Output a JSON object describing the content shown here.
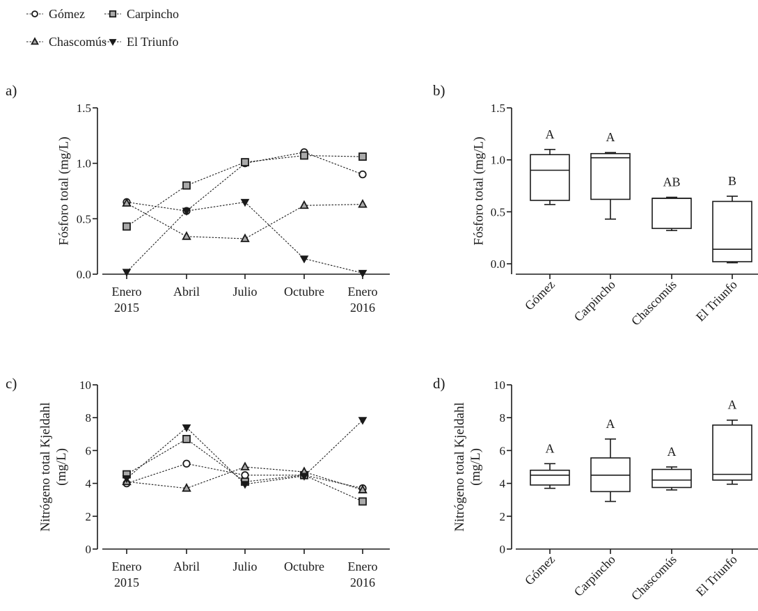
{
  "legend": {
    "items": [
      {
        "name": "Gómez",
        "marker": "circle"
      },
      {
        "name": "Carpincho",
        "marker": "square"
      },
      {
        "name": "Chascomús",
        "marker": "triangle-up"
      },
      {
        "name": "El Triunfo",
        "marker": "triangle-down"
      }
    ]
  },
  "colors": {
    "line": "#1a1a1a",
    "gray_fill": "#aaaaaa",
    "black_fill": "#1a1a1a",
    "open_fill": "#ffffff"
  },
  "chart_data": [
    {
      "panel": "a)",
      "type": "line",
      "ylabel": [
        "Fósforo total (mg/L)"
      ],
      "ylim": [
        0,
        1.5
      ],
      "yticks": [
        0,
        0.5,
        1.0,
        1.5
      ],
      "ytick_labels": [
        "0.0",
        "0.5",
        "1.0",
        "1.5"
      ],
      "categories": [
        [
          "Enero",
          "2015"
        ],
        [
          "Abril"
        ],
        [
          "Julio"
        ],
        [
          "Octubre"
        ],
        [
          "Enero",
          "2016"
        ]
      ],
      "series": [
        {
          "name": "Gómez",
          "marker": "circle",
          "values": [
            0.65,
            0.57,
            1.0,
            1.1,
            0.9
          ]
        },
        {
          "name": "Carpincho",
          "marker": "square",
          "values": [
            0.43,
            0.8,
            1.01,
            1.07,
            1.06
          ]
        },
        {
          "name": "Chascomús",
          "marker": "triangle-up",
          "values": [
            0.64,
            0.34,
            0.32,
            0.62,
            0.63
          ]
        },
        {
          "name": "El Triunfo",
          "marker": "triangle-down",
          "values": [
            0.02,
            0.57,
            0.65,
            0.14,
            0.01
          ]
        }
      ]
    },
    {
      "panel": "b)",
      "type": "box",
      "ylabel": [
        "Fósforo total (mg/L)"
      ],
      "ylim": [
        -0.1,
        1.5
      ],
      "yticks": [
        0,
        0.5,
        1.0,
        1.5
      ],
      "ytick_labels": [
        "0.0",
        "0.5",
        "1.0",
        "1.5"
      ],
      "categories": [
        "Gómez",
        "Carpincho",
        "Chascomús",
        "El Triunfo"
      ],
      "boxes": [
        {
          "min": 0.57,
          "q1": 0.61,
          "median": 0.9,
          "q3": 1.05,
          "max": 1.1,
          "letter": "A"
        },
        {
          "min": 0.43,
          "q1": 0.62,
          "median": 1.02,
          "q3": 1.06,
          "max": 1.07,
          "letter": "A"
        },
        {
          "min": 0.32,
          "q1": 0.34,
          "median": 0.63,
          "q3": 0.63,
          "max": 0.64,
          "letter": "AB"
        },
        {
          "min": 0.01,
          "q1": 0.02,
          "median": 0.14,
          "q3": 0.6,
          "max": 0.65,
          "letter": "B"
        }
      ]
    },
    {
      "panel": "c)",
      "type": "line",
      "ylabel": [
        "Nitrógeno total Kjeldahl",
        "(mg/L)"
      ],
      "ylim": [
        0,
        10
      ],
      "yticks": [
        0,
        2,
        4,
        6,
        8,
        10
      ],
      "ytick_labels": [
        "0",
        "2",
        "4",
        "6",
        "8",
        "10"
      ],
      "categories": [
        [
          "Enero",
          "2015"
        ],
        [
          "Abril"
        ],
        [
          "Julio"
        ],
        [
          "Octubre"
        ],
        [
          "Enero",
          "2016"
        ]
      ],
      "series": [
        {
          "name": "Gómez",
          "marker": "circle",
          "values": [
            4.0,
            5.2,
            4.5,
            4.5,
            3.7
          ]
        },
        {
          "name": "Carpincho",
          "marker": "square",
          "values": [
            4.55,
            6.7,
            4.1,
            4.5,
            2.9
          ]
        },
        {
          "name": "Chascomús",
          "marker": "triangle-up",
          "values": [
            4.1,
            3.7,
            5.0,
            4.7,
            3.6
          ]
        },
        {
          "name": "El Triunfo",
          "marker": "triangle-down",
          "values": [
            4.3,
            7.4,
            3.95,
            4.45,
            7.85
          ]
        }
      ]
    },
    {
      "panel": "d)",
      "type": "box",
      "ylabel": [
        "Nitrógeno total Kjeldahl",
        "(mg/L)"
      ],
      "ylim": [
        0,
        10
      ],
      "yticks": [
        0,
        2,
        4,
        6,
        8,
        10
      ],
      "ytick_labels": [
        "0",
        "2",
        "4",
        "6",
        "8",
        "10"
      ],
      "categories": [
        "Gómez",
        "Carpincho",
        "Chascomús",
        "El Triunfo"
      ],
      "boxes": [
        {
          "min": 3.7,
          "q1": 3.9,
          "median": 4.5,
          "q3": 4.8,
          "max": 5.2,
          "letter": "A"
        },
        {
          "min": 2.9,
          "q1": 3.5,
          "median": 4.5,
          "q3": 5.55,
          "max": 6.7,
          "letter": "A"
        },
        {
          "min": 3.6,
          "q1": 3.75,
          "median": 4.2,
          "q3": 4.85,
          "max": 5.0,
          "letter": "A"
        },
        {
          "min": 3.95,
          "q1": 4.2,
          "median": 4.55,
          "q3": 7.55,
          "max": 7.85,
          "letter": "A"
        }
      ]
    }
  ]
}
